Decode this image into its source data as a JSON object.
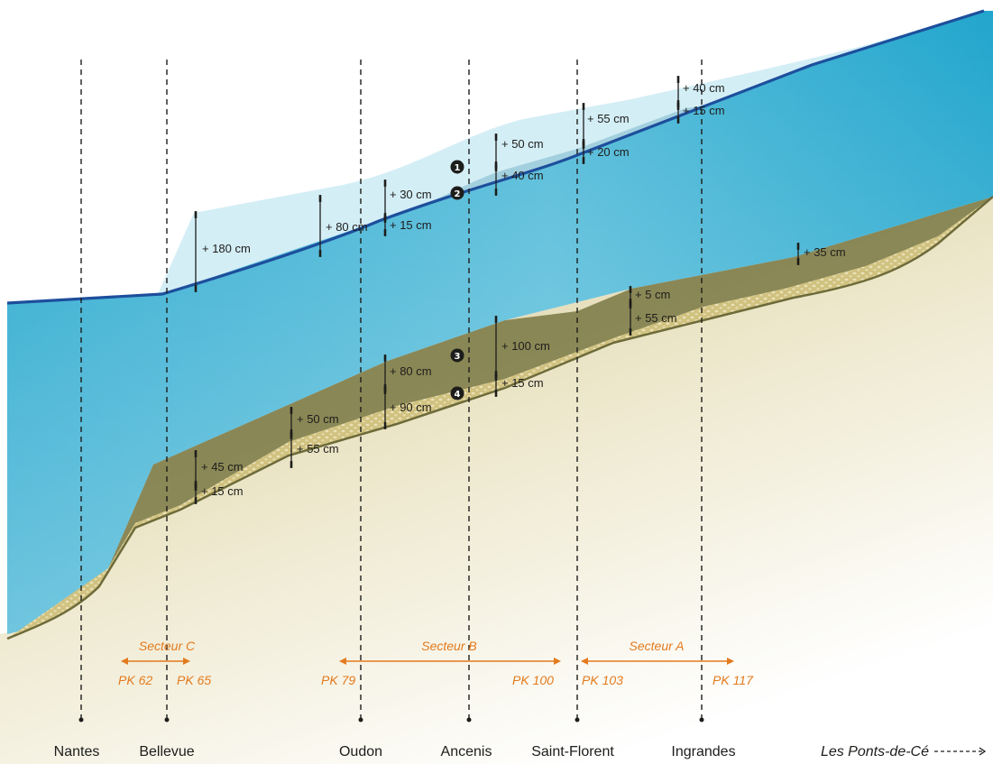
{
  "towns": [
    {
      "label": "Nantes"
    },
    {
      "label": "Bellevue"
    },
    {
      "label": "Oudon"
    },
    {
      "label": "Ancenis"
    },
    {
      "label": "Saint-Florent"
    },
    {
      "label": "Ingrandes"
    },
    {
      "label": "Les Ponts-de-Cé"
    }
  ],
  "sectors": {
    "c": {
      "label": "Secteur C",
      "pk_start": "PK 62",
      "pk_end": "PK 65"
    },
    "b": {
      "label": "Secteur B",
      "pk_start": "PK 79",
      "pk_end": "PK 100"
    },
    "a": {
      "label": "Secteur A",
      "pk_start": "PK 103",
      "pk_end": "PK 117"
    }
  },
  "markers": [
    "1",
    "2",
    "3",
    "4"
  ],
  "measurements": {
    "bellevue_water": "+ 180 cm",
    "oudon_water": "+ 80 cm",
    "oudon_upper": "+ 30 cm",
    "oudon_lower": "+ 15 cm",
    "ancenis_upper": "+ 50 cm",
    "ancenis_lower": "+ 40 cm",
    "stflorent_upper": "+ 55 cm",
    "stflorent_lower": "+ 20 cm",
    "ingrandes_upper": "+ 40 cm",
    "ingrandes_lower": "+ 15 cm",
    "bed_bellevue_upper": "+ 45 cm",
    "bed_bellevue_lower": "+ 15 cm",
    "bed_pre_oudon_upper": "+ 50 cm",
    "bed_pre_oudon_lower": "+ 55 cm",
    "bed_oudon_upper": "+ 80 cm",
    "bed_oudon_lower": "+ 90 cm",
    "bed_ancenis_upper": "+ 100 cm",
    "bed_ancenis_lower": "+ 15 cm",
    "bed_stflorent_upper": "+ 5 cm",
    "bed_stflorent_lower": "+ 55 cm",
    "bed_far": "+ 35 cm"
  },
  "colors": {
    "water_light": "#a9dbe9",
    "water_deep": "#1aa3cb",
    "water_line": "#1d4f9c",
    "bed_dark": "#7f7d4a",
    "sediment": "#cfc07f",
    "accent": "#e37a1d",
    "ink": "#1d1d1b"
  }
}
